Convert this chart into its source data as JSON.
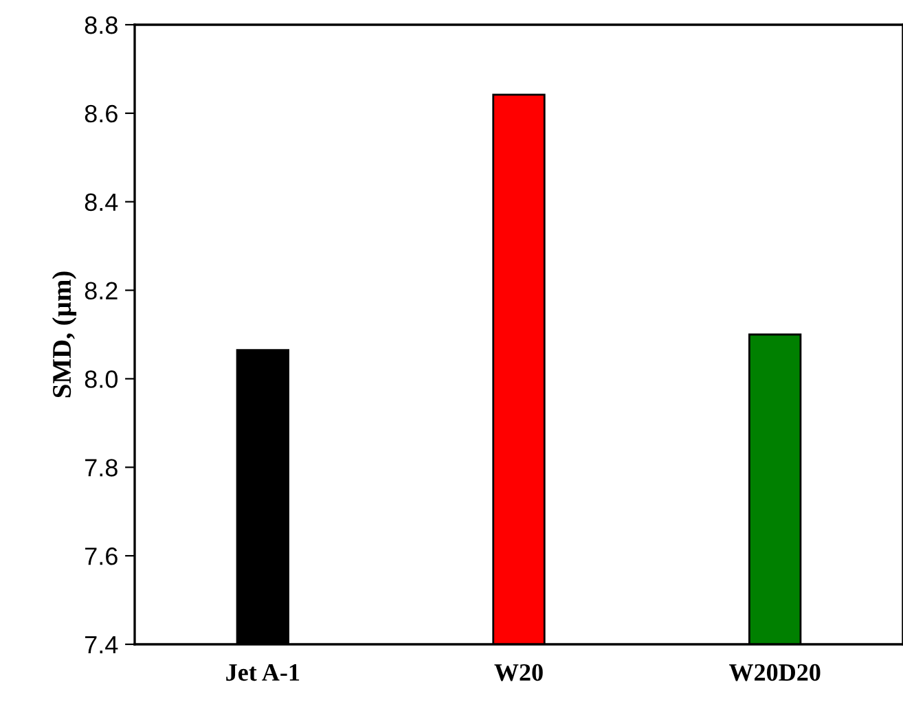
{
  "chart_data": {
    "type": "bar",
    "ylabel": "SMD, (µm)",
    "categories": [
      "Jet A-1",
      "W20",
      "W20D20"
    ],
    "values": [
      8.065,
      8.642,
      8.1
    ],
    "colors": [
      "#000000",
      "#ff0000",
      "#008000"
    ],
    "ylim": [
      7.4,
      8.8
    ],
    "yticks": [
      {
        "value": 7.4,
        "label": "7.4"
      },
      {
        "value": 7.6,
        "label": "7.6"
      },
      {
        "value": 7.8,
        "label": "7.8"
      },
      {
        "value": 8.0,
        "label": "8.0"
      },
      {
        "value": 8.2,
        "label": "8.2"
      },
      {
        "value": 8.4,
        "label": "8.4"
      },
      {
        "value": 8.6,
        "label": "8.6"
      },
      {
        "value": 8.8,
        "label": "8.8"
      }
    ],
    "grid": false,
    "legend": false
  }
}
